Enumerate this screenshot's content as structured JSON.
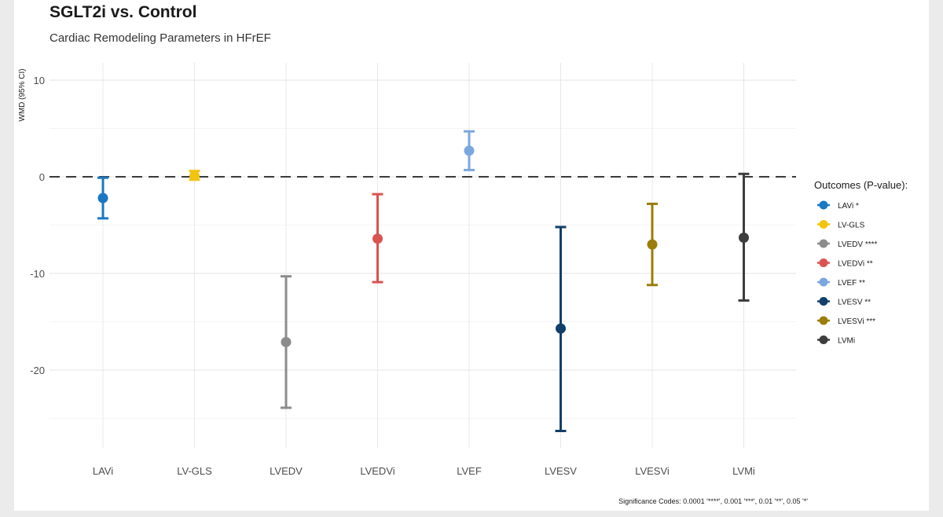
{
  "chart_data": {
    "type": "errorbar",
    "title": "SGLT2i vs. Control",
    "subtitle": "Cardiac Remodeling Parameters in HFrEF",
    "ylabel": "WMD (95% CI)",
    "xlabel": "",
    "ylim": [
      -29,
      11
    ],
    "y_ticks": [
      10,
      0,
      -10,
      -20
    ],
    "reference_line": 0,
    "grid": true,
    "categories": [
      "LAVi",
      "LV-GLS",
      "LVEDV",
      "LVEDVi",
      "LVEF",
      "LVESV",
      "LVESVi",
      "LVMi"
    ],
    "series": [
      {
        "name": "LAVi *",
        "estimate": -2.2,
        "lower": -4.3,
        "upper": -0.1,
        "color": "#1a78c2"
      },
      {
        "name": "LV-GLS",
        "estimate": 0.1,
        "lower": -0.3,
        "upper": 0.6,
        "color": "#f2c40f"
      },
      {
        "name": "LVEDV ****",
        "estimate": -17.1,
        "lower": -23.9,
        "upper": -10.3,
        "color": "#8c8c8c"
      },
      {
        "name": "LVEDVi **",
        "estimate": -6.4,
        "lower": -10.9,
        "upper": -1.8,
        "color": "#d9534f"
      },
      {
        "name": "LVEF **",
        "estimate": 2.7,
        "lower": 0.7,
        "upper": 4.7,
        "color": "#7ba7de"
      },
      {
        "name": "LVESV **",
        "estimate": -15.7,
        "lower": -26.3,
        "upper": -5.2,
        "color": "#123f6b"
      },
      {
        "name": "LVESVi ***",
        "estimate": -7.0,
        "lower": -11.2,
        "upper": -2.8,
        "color": "#9a7d0a"
      },
      {
        "name": "LVMi",
        "estimate": -6.3,
        "lower": -12.8,
        "upper": 0.3,
        "color": "#3d3d3d"
      }
    ],
    "legend_title": "Outcomes (P-value):",
    "legend_position": "right",
    "caption": "Significance Codes: 0.0001 '****', 0.001 '***', 0.01 '**', 0.05 '*'"
  }
}
